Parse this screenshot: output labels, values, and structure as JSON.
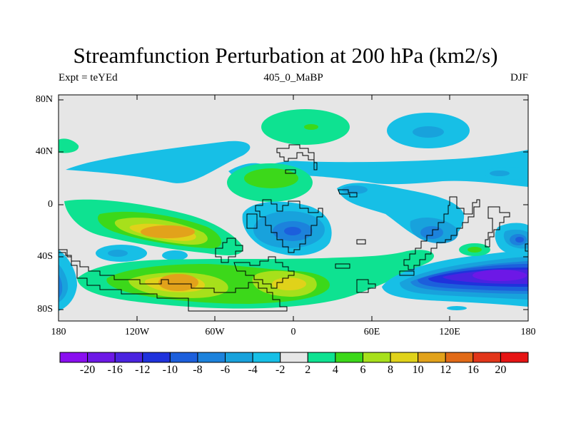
{
  "title": "Streamfunction Perturbation at 200 hPa (km2/s)",
  "subtitle_left": "Expt = teYEd",
  "subtitle_center": "405_0_MaBP",
  "subtitle_right": "DJF",
  "y_tick_labels": [
    "80N",
    "40N",
    "0",
    "40S",
    "80S"
  ],
  "x_tick_labels": [
    "180",
    "120W",
    "60W",
    "0",
    "60E",
    "120E",
    "180"
  ],
  "colorbar": {
    "labels": [
      "-20",
      "-16",
      "-12",
      "-10",
      "-8",
      "-6",
      "-4",
      "-2",
      "2",
      "4",
      "6",
      "8",
      "10",
      "12",
      "16",
      "20"
    ],
    "colors": [
      "#8a0ef0",
      "#6d18e6",
      "#4a23e0",
      "#1f32dc",
      "#1c5fdc",
      "#1c82dc",
      "#18a2dc",
      "#17bfe6",
      "#e6e6e6",
      "#0ee291",
      "#3cd81a",
      "#a7e01b",
      "#e0d21a",
      "#e2a21b",
      "#e16a17",
      "#e2361a",
      "#e61414"
    ]
  },
  "chart_data": {
    "type": "heatmap",
    "title": "Streamfunction Perturbation at 200 hPa (km2/s)",
    "variable": "Streamfunction Perturbation",
    "level": "200 hPa",
    "units": "km2/s",
    "experiment": "teYEd",
    "case": "405_0_MaBP",
    "season": "DJF",
    "xlim": [
      -180,
      180
    ],
    "ylim": [
      -90,
      90
    ],
    "contour_levels": [
      -20,
      -16,
      -12,
      -10,
      -8,
      -6,
      -4,
      -2,
      2,
      4,
      6,
      8,
      10,
      12,
      16,
      20
    ],
    "features": [
      {
        "lon": -95,
        "lat": -20,
        "value": 12
      },
      {
        "lon": -75,
        "lat": -60,
        "value": 12
      },
      {
        "lon": -30,
        "lat": 22,
        "value": 6
      },
      {
        "lon": 12,
        "lat": 60,
        "value": 4
      },
      {
        "lon": 10,
        "lat": -60,
        "value": 8
      },
      {
        "lon": 0,
        "lat": -20,
        "value": -8
      },
      {
        "lon": 150,
        "lat": 55,
        "value": -4
      },
      {
        "lon": 150,
        "lat": -55,
        "value": -20
      },
      {
        "lon": 140,
        "lat": -35,
        "value": 6
      },
      {
        "lon": 170,
        "lat": -25,
        "value": -6
      }
    ]
  }
}
